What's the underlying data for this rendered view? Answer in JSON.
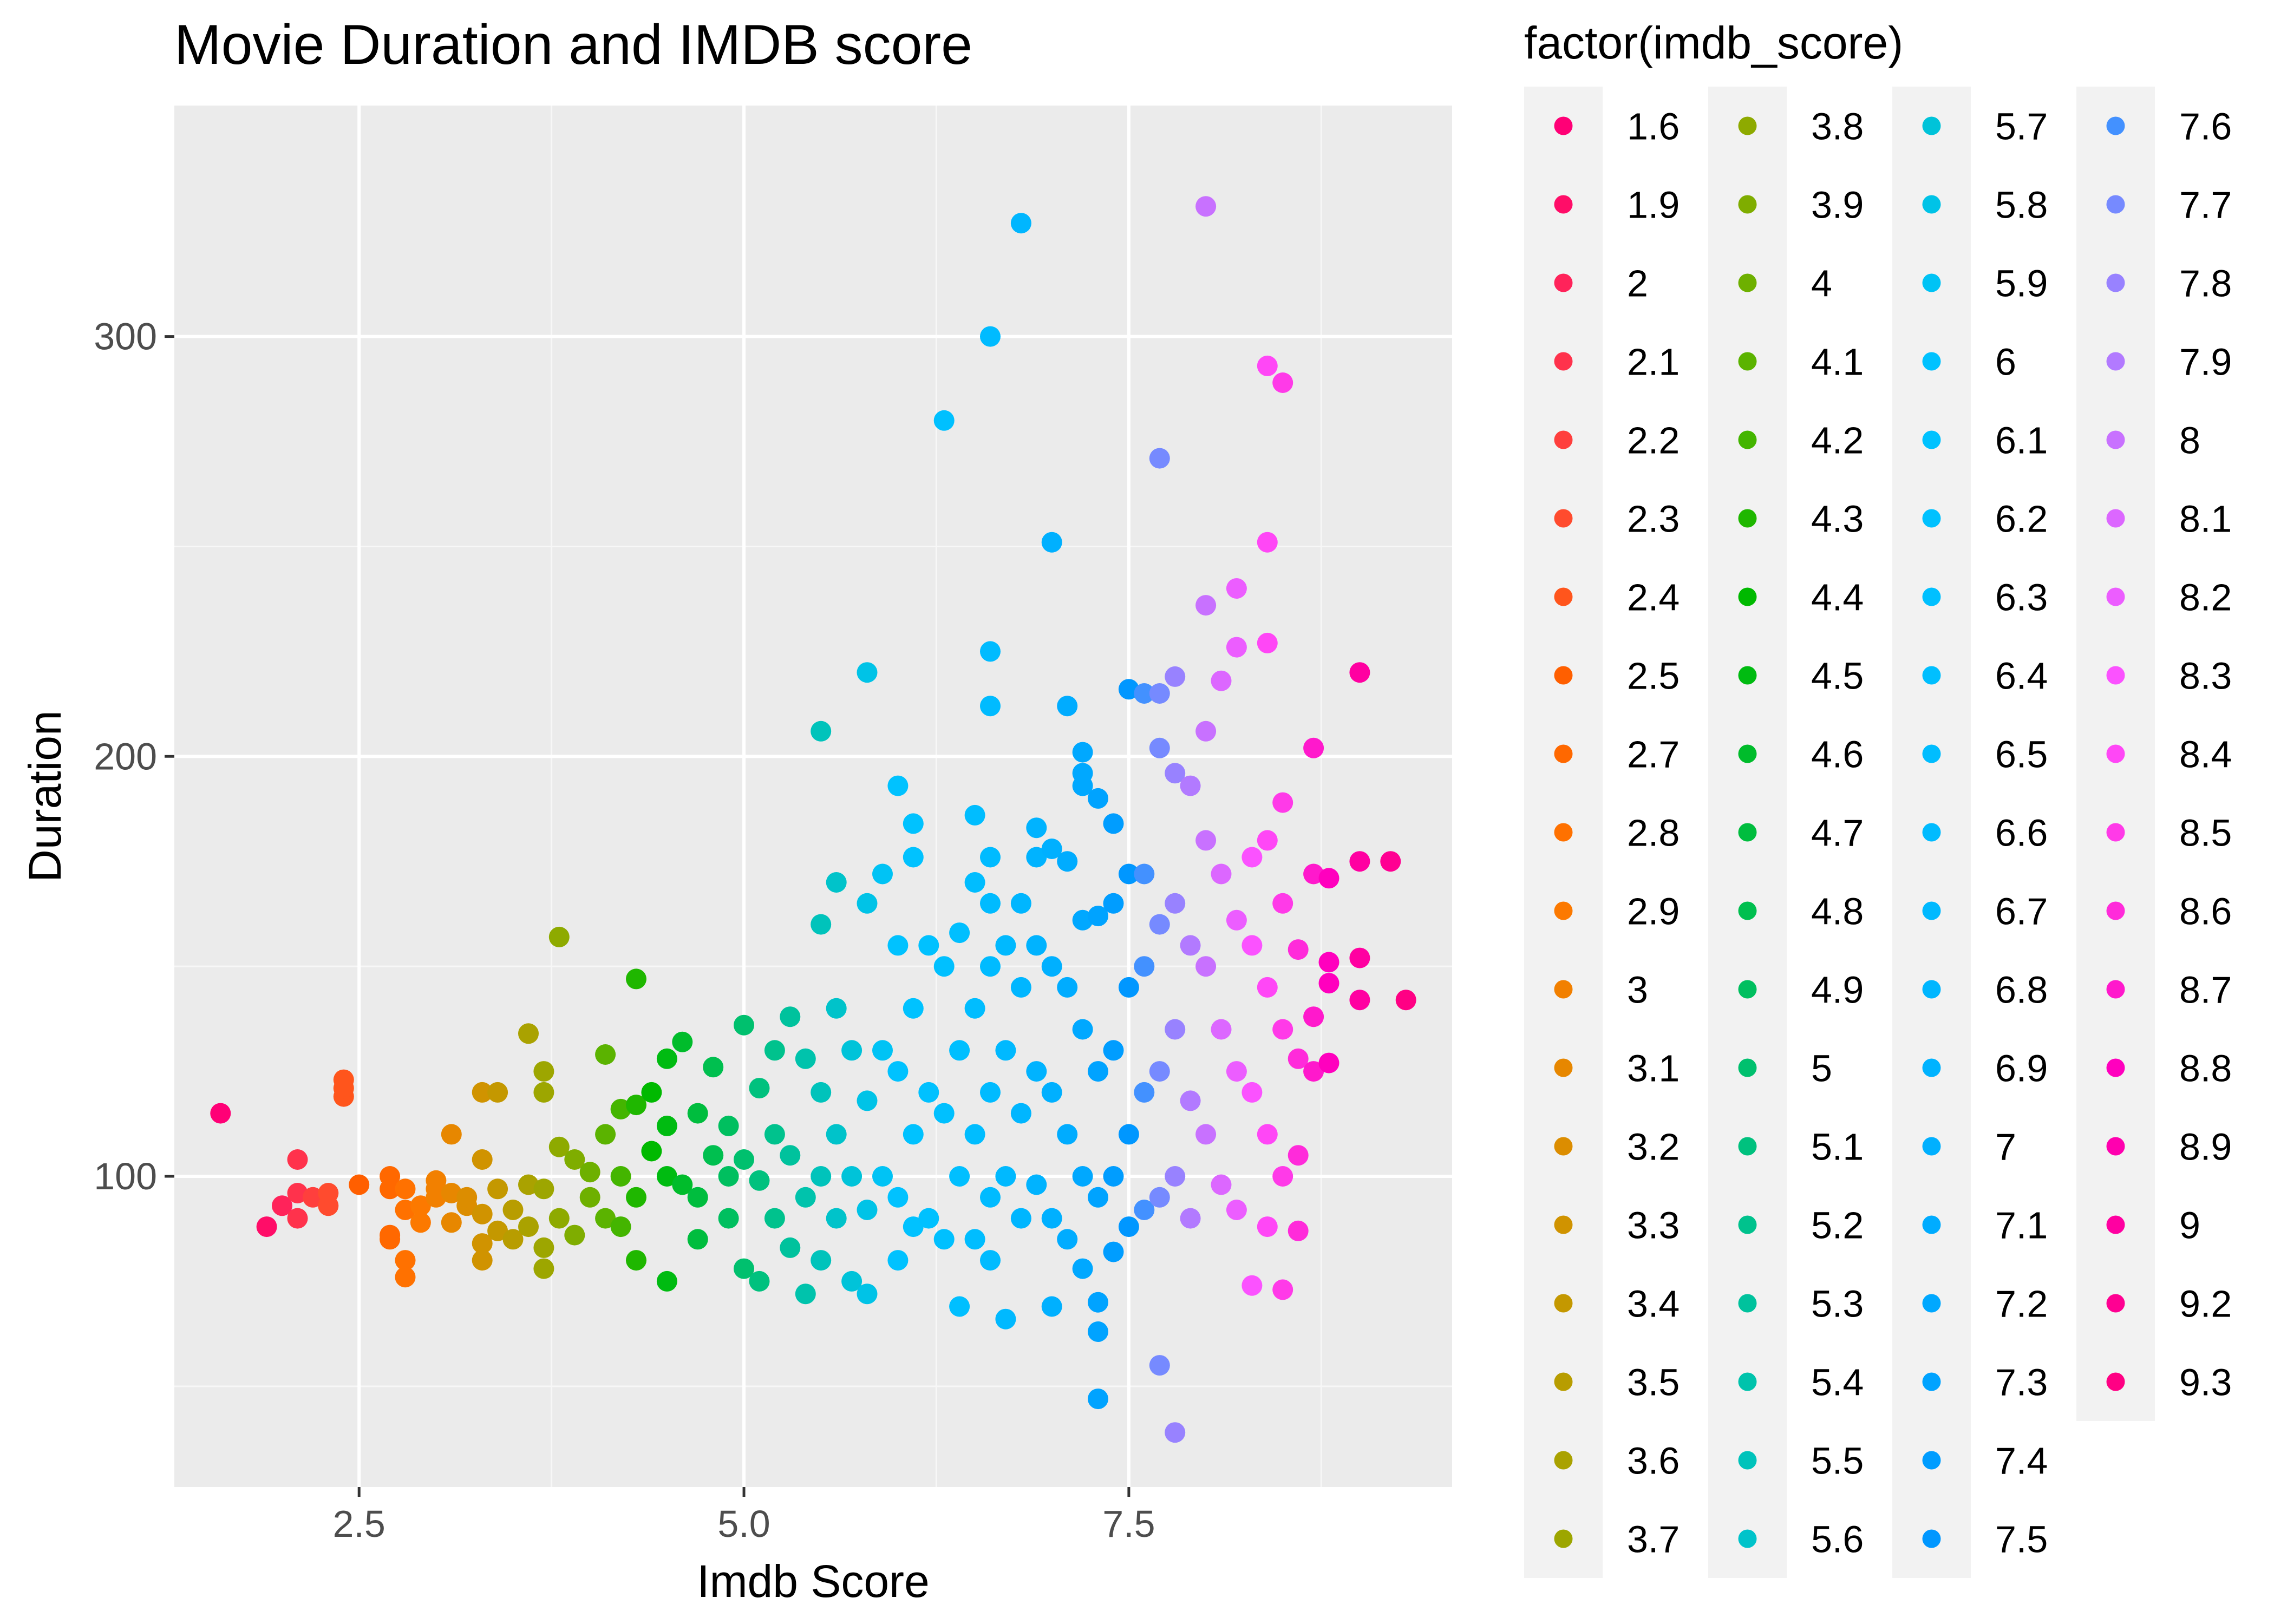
{
  "chart_data": {
    "type": "scatter",
    "title": "Movie Duration and IMDB score",
    "xlabel": "Imdb Score",
    "ylabel": "Duration",
    "xlim": [
      1.3,
      9.6
    ],
    "ylim": [
      26,
      355
    ],
    "x_ticks": [
      2.5,
      5.0,
      7.5
    ],
    "x_tick_labels": [
      "2.5",
      "5.0",
      "7.5"
    ],
    "y_ticks": [
      100,
      200,
      300
    ],
    "y_tick_labels": [
      "100",
      "200",
      "300"
    ],
    "grid": true,
    "legend": {
      "title": "factor(imdb_score)",
      "placement": "right",
      "entries": [
        "1.6",
        "1.9",
        "2",
        "2.1",
        "2.2",
        "2.3",
        "2.4",
        "2.5",
        "2.7",
        "2.8",
        "2.9",
        "3",
        "3.1",
        "3.2",
        "3.3",
        "3.4",
        "3.5",
        "3.6",
        "3.7",
        "3.8",
        "3.9",
        "4",
        "4.1",
        "4.2",
        "4.3",
        "4.4",
        "4.5",
        "4.6",
        "4.7",
        "4.8",
        "4.9",
        "5",
        "5.1",
        "5.2",
        "5.3",
        "5.4",
        "5.5",
        "5.6",
        "5.7",
        "5.8",
        "5.9",
        "6",
        "6.1",
        "6.2",
        "6.3",
        "6.4",
        "6.5",
        "6.6",
        "6.7",
        "6.8",
        "6.9",
        "7",
        "7.1",
        "7.2",
        "7.3",
        "7.4",
        "7.5",
        "7.6",
        "7.7",
        "7.8",
        "7.9",
        "8",
        "8.1",
        "8.2",
        "8.3",
        "8.4",
        "8.5",
        "8.6",
        "8.7",
        "8.8",
        "8.9",
        "9",
        "9.2",
        "9.3"
      ]
    },
    "color_by": "imdb_score (hue scale, one hue per factor level)",
    "points": [
      [
        1.6,
        115
      ],
      [
        1.9,
        88
      ],
      [
        2.0,
        93
      ],
      [
        2.1,
        104
      ],
      [
        2.1,
        90
      ],
      [
        2.1,
        96
      ],
      [
        2.2,
        95
      ],
      [
        2.3,
        93
      ],
      [
        2.3,
        96
      ],
      [
        2.4,
        119
      ],
      [
        2.4,
        121
      ],
      [
        2.4,
        123
      ],
      [
        2.5,
        98
      ],
      [
        2.7,
        100
      ],
      [
        2.7,
        97
      ],
      [
        2.7,
        86
      ],
      [
        2.7,
        85
      ],
      [
        2.8,
        80
      ],
      [
        2.8,
        76
      ],
      [
        2.8,
        97
      ],
      [
        2.8,
        92
      ],
      [
        2.9,
        89
      ],
      [
        2.9,
        93
      ],
      [
        3.0,
        99
      ],
      [
        3.0,
        97
      ],
      [
        3.0,
        95
      ],
      [
        3.1,
        110
      ],
      [
        3.1,
        96
      ],
      [
        3.1,
        89
      ],
      [
        3.2,
        93
      ],
      [
        3.2,
        95
      ],
      [
        3.3,
        120
      ],
      [
        3.3,
        104
      ],
      [
        3.3,
        91
      ],
      [
        3.3,
        84
      ],
      [
        3.3,
        80
      ],
      [
        3.4,
        120
      ],
      [
        3.4,
        97
      ],
      [
        3.4,
        87
      ],
      [
        3.5,
        92
      ],
      [
        3.5,
        85
      ],
      [
        3.6,
        134
      ],
      [
        3.6,
        98
      ],
      [
        3.6,
        88
      ],
      [
        3.7,
        125
      ],
      [
        3.7,
        120
      ],
      [
        3.7,
        97
      ],
      [
        3.7,
        83
      ],
      [
        3.7,
        78
      ],
      [
        3.8,
        157
      ],
      [
        3.8,
        107
      ],
      [
        3.8,
        90
      ],
      [
        3.9,
        104
      ],
      [
        3.9,
        86
      ],
      [
        4.0,
        101
      ],
      [
        4.0,
        95
      ],
      [
        4.1,
        129
      ],
      [
        4.1,
        110
      ],
      [
        4.1,
        90
      ],
      [
        4.2,
        116
      ],
      [
        4.2,
        100
      ],
      [
        4.2,
        88
      ],
      [
        4.3,
        147
      ],
      [
        4.3,
        117
      ],
      [
        4.3,
        95
      ],
      [
        4.3,
        80
      ],
      [
        4.4,
        120
      ],
      [
        4.4,
        106
      ],
      [
        4.5,
        128
      ],
      [
        4.5,
        112
      ],
      [
        4.5,
        100
      ],
      [
        4.5,
        75
      ],
      [
        4.6,
        132
      ],
      [
        4.6,
        98
      ],
      [
        4.7,
        115
      ],
      [
        4.7,
        95
      ],
      [
        4.7,
        85
      ],
      [
        4.8,
        126
      ],
      [
        4.8,
        105
      ],
      [
        4.9,
        112
      ],
      [
        4.9,
        100
      ],
      [
        4.9,
        90
      ],
      [
        5.0,
        136
      ],
      [
        5.0,
        104
      ],
      [
        5.0,
        78
      ],
      [
        5.1,
        121
      ],
      [
        5.1,
        99
      ],
      [
        5.1,
        75
      ],
      [
        5.2,
        130
      ],
      [
        5.2,
        110
      ],
      [
        5.2,
        90
      ],
      [
        5.3,
        138
      ],
      [
        5.3,
        105
      ],
      [
        5.3,
        83
      ],
      [
        5.4,
        128
      ],
      [
        5.4,
        95
      ],
      [
        5.4,
        72
      ],
      [
        5.5,
        206
      ],
      [
        5.5,
        160
      ],
      [
        5.5,
        120
      ],
      [
        5.5,
        100
      ],
      [
        5.5,
        80
      ],
      [
        5.6,
        170
      ],
      [
        5.6,
        140
      ],
      [
        5.6,
        110
      ],
      [
        5.6,
        90
      ],
      [
        5.7,
        130
      ],
      [
        5.7,
        100
      ],
      [
        5.7,
        75
      ],
      [
        5.8,
        220
      ],
      [
        5.8,
        165
      ],
      [
        5.8,
        118
      ],
      [
        5.8,
        92
      ],
      [
        5.8,
        72
      ],
      [
        5.9,
        172
      ],
      [
        5.9,
        130
      ],
      [
        5.9,
        100
      ],
      [
        6.0,
        193
      ],
      [
        6.0,
        155
      ],
      [
        6.0,
        125
      ],
      [
        6.0,
        95
      ],
      [
        6.0,
        80
      ],
      [
        6.1,
        184
      ],
      [
        6.1,
        176
      ],
      [
        6.1,
        140
      ],
      [
        6.1,
        110
      ],
      [
        6.1,
        88
      ],
      [
        6.2,
        155
      ],
      [
        6.2,
        120
      ],
      [
        6.2,
        90
      ],
      [
        6.3,
        280
      ],
      [
        6.3,
        150
      ],
      [
        6.3,
        115
      ],
      [
        6.3,
        85
      ],
      [
        6.4,
        158
      ],
      [
        6.4,
        130
      ],
      [
        6.4,
        100
      ],
      [
        6.4,
        69
      ],
      [
        6.5,
        186
      ],
      [
        6.5,
        170
      ],
      [
        6.5,
        140
      ],
      [
        6.5,
        110
      ],
      [
        6.5,
        85
      ],
      [
        6.6,
        300
      ],
      [
        6.6,
        225
      ],
      [
        6.6,
        212
      ],
      [
        6.6,
        176
      ],
      [
        6.6,
        165
      ],
      [
        6.6,
        150
      ],
      [
        6.6,
        120
      ],
      [
        6.6,
        95
      ],
      [
        6.6,
        80
      ],
      [
        6.7,
        155
      ],
      [
        6.7,
        130
      ],
      [
        6.7,
        100
      ],
      [
        6.7,
        66
      ],
      [
        6.8,
        327
      ],
      [
        6.8,
        165
      ],
      [
        6.8,
        145
      ],
      [
        6.8,
        115
      ],
      [
        6.8,
        90
      ],
      [
        6.9,
        183
      ],
      [
        6.9,
        176
      ],
      [
        6.9,
        155
      ],
      [
        6.9,
        125
      ],
      [
        6.9,
        98
      ],
      [
        7.0,
        251
      ],
      [
        7.0,
        178
      ],
      [
        7.0,
        150
      ],
      [
        7.0,
        120
      ],
      [
        7.0,
        90
      ],
      [
        7.0,
        69
      ],
      [
        7.1,
        212
      ],
      [
        7.1,
        175
      ],
      [
        7.1,
        145
      ],
      [
        7.1,
        110
      ],
      [
        7.1,
        85
      ],
      [
        7.2,
        201
      ],
      [
        7.2,
        196
      ],
      [
        7.2,
        193
      ],
      [
        7.2,
        161
      ],
      [
        7.2,
        135
      ],
      [
        7.2,
        100
      ],
      [
        7.2,
        78
      ],
      [
        7.3,
        190
      ],
      [
        7.3,
        162
      ],
      [
        7.3,
        125
      ],
      [
        7.3,
        95
      ],
      [
        7.3,
        70
      ],
      [
        7.3,
        63
      ],
      [
        7.3,
        47
      ],
      [
        7.4,
        184
      ],
      [
        7.4,
        165
      ],
      [
        7.4,
        130
      ],
      [
        7.4,
        100
      ],
      [
        7.4,
        82
      ],
      [
        7.5,
        216
      ],
      [
        7.5,
        172
      ],
      [
        7.5,
        145
      ],
      [
        7.5,
        110
      ],
      [
        7.5,
        88
      ],
      [
        7.6,
        215
      ],
      [
        7.6,
        172
      ],
      [
        7.6,
        150
      ],
      [
        7.6,
        120
      ],
      [
        7.6,
        92
      ],
      [
        7.7,
        271
      ],
      [
        7.7,
        215
      ],
      [
        7.7,
        202
      ],
      [
        7.7,
        160
      ],
      [
        7.7,
        125
      ],
      [
        7.7,
        95
      ],
      [
        7.7,
        55
      ],
      [
        7.8,
        219
      ],
      [
        7.8,
        196
      ],
      [
        7.8,
        165
      ],
      [
        7.8,
        135
      ],
      [
        7.8,
        100
      ],
      [
        7.8,
        39
      ],
      [
        7.9,
        193
      ],
      [
        7.9,
        155
      ],
      [
        7.9,
        118
      ],
      [
        7.9,
        90
      ],
      [
        8.0,
        331
      ],
      [
        8.0,
        236
      ],
      [
        8.0,
        206
      ],
      [
        8.0,
        180
      ],
      [
        8.0,
        150
      ],
      [
        8.0,
        110
      ],
      [
        8.1,
        218
      ],
      [
        8.1,
        172
      ],
      [
        8.1,
        135
      ],
      [
        8.1,
        98
      ],
      [
        8.2,
        240
      ],
      [
        8.2,
        226
      ],
      [
        8.2,
        161
      ],
      [
        8.2,
        125
      ],
      [
        8.2,
        92
      ],
      [
        8.3,
        176
      ],
      [
        8.3,
        155
      ],
      [
        8.3,
        120
      ],
      [
        8.3,
        74
      ],
      [
        8.4,
        293
      ],
      [
        8.4,
        251
      ],
      [
        8.4,
        227
      ],
      [
        8.4,
        180
      ],
      [
        8.4,
        145
      ],
      [
        8.4,
        110
      ],
      [
        8.4,
        88
      ],
      [
        8.5,
        289
      ],
      [
        8.5,
        189
      ],
      [
        8.5,
        165
      ],
      [
        8.5,
        135
      ],
      [
        8.5,
        100
      ],
      [
        8.5,
        73
      ],
      [
        8.6,
        154
      ],
      [
        8.6,
        128
      ],
      [
        8.6,
        105
      ],
      [
        8.6,
        87
      ],
      [
        8.7,
        202
      ],
      [
        8.7,
        172
      ],
      [
        8.7,
        138
      ],
      [
        8.7,
        125
      ],
      [
        8.8,
        151
      ],
      [
        8.8,
        146
      ],
      [
        8.8,
        127
      ],
      [
        8.8,
        171
      ],
      [
        9.0,
        220
      ],
      [
        9.0,
        175
      ],
      [
        9.0,
        152
      ],
      [
        9.0,
        142
      ],
      [
        9.2,
        175
      ],
      [
        9.3,
        142
      ]
    ]
  }
}
